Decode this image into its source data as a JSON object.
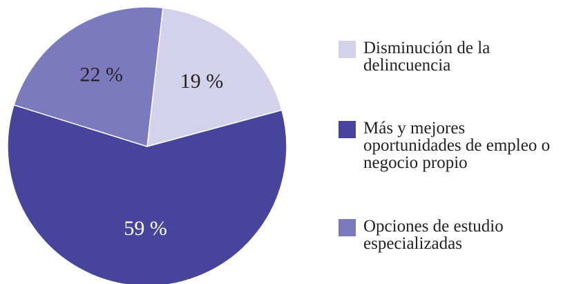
{
  "chart_data": {
    "type": "pie",
    "categories": [
      "Disminución de la delincuencia",
      "Más y mejores oportunidades de empleo o negocio propio",
      "Opciones de estudio especializadas"
    ],
    "values": [
      19,
      59,
      22
    ],
    "value_labels": [
      "19 %",
      "59 %",
      "22 %"
    ],
    "colors": [
      "#d3d2ea",
      "#47459b",
      "#7c7abf"
    ]
  }
}
